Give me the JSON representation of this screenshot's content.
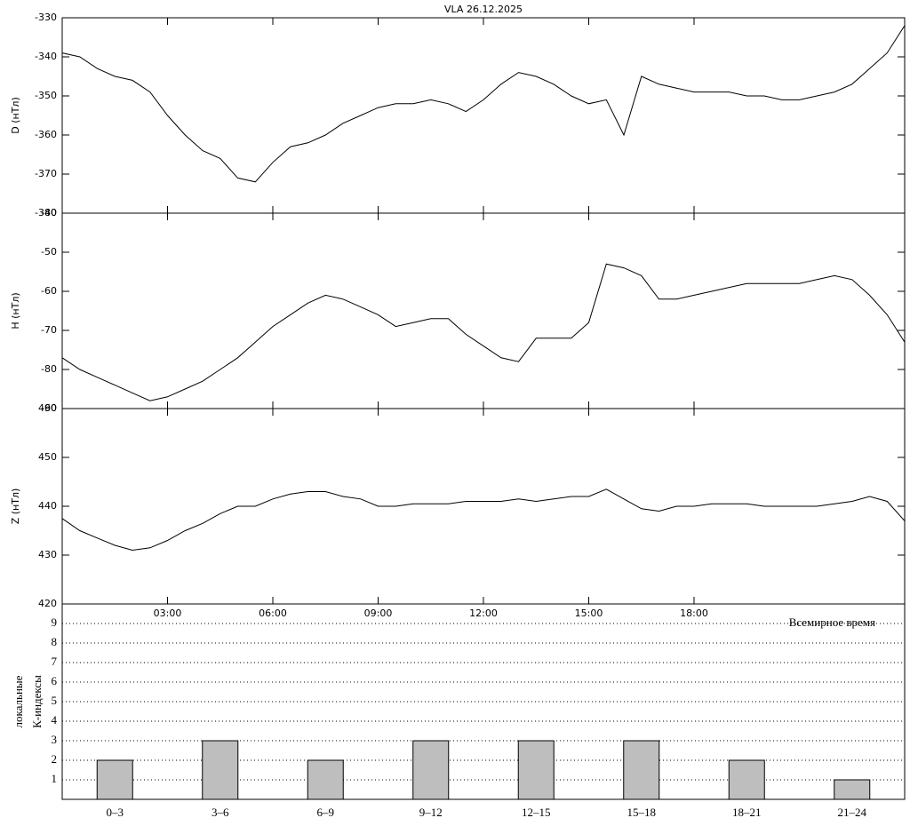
{
  "chart_data": [
    {
      "type": "line",
      "title": "VLA   26.12.2025",
      "ylabel": "D (нТл)",
      "color": "#000000",
      "x": [
        0,
        0.5,
        1,
        1.5,
        2,
        2.5,
        3,
        3.5,
        4,
        4.5,
        5,
        5.5,
        6,
        6.5,
        7,
        7.5,
        8,
        8.5,
        9,
        9.5,
        10,
        10.5,
        11,
        11.5,
        12,
        12.5,
        13,
        13.5,
        14,
        14.5,
        15,
        15.5,
        16,
        16.5,
        17,
        17.5,
        18,
        18.5,
        19,
        19.5,
        20,
        20.5,
        21,
        21.5,
        22,
        22.5,
        23,
        23.5,
        24
      ],
      "values": [
        -339,
        -340,
        -343,
        -345,
        -346,
        -349,
        -355,
        -360,
        -364,
        -366,
        -371,
        -372,
        -367,
        -363,
        -362,
        -360,
        -357,
        -355,
        -353,
        -352,
        -352,
        -351,
        -352,
        -354,
        -351,
        -347,
        -344,
        -345,
        -347,
        -350,
        -352,
        -351,
        -360,
        -345,
        -347,
        -348,
        -349,
        -349,
        -349,
        -350,
        -350,
        -351,
        -351,
        -350,
        -349,
        -347,
        -343,
        -339,
        -332
      ],
      "xlim": [
        0,
        24
      ],
      "ylim": [
        -380,
        -330
      ],
      "yticks": [
        -380,
        -370,
        -360,
        -350,
        -340,
        -330
      ]
    },
    {
      "type": "line",
      "ylabel": "H (нТл)",
      "color": "#000000",
      "x": [
        0,
        0.5,
        1,
        1.5,
        2,
        2.5,
        3,
        3.5,
        4,
        4.5,
        5,
        5.5,
        6,
        6.5,
        7,
        7.5,
        8,
        8.5,
        9,
        9.5,
        10,
        10.5,
        11,
        11.5,
        12,
        12.5,
        13,
        13.5,
        14,
        14.5,
        15,
        15.5,
        16,
        16.5,
        17,
        17.5,
        18,
        18.5,
        19,
        19.5,
        20,
        20.5,
        21,
        21.5,
        22,
        22.5,
        23,
        23.5,
        24
      ],
      "values": [
        -77,
        -80,
        -82,
        -84,
        -86,
        -88,
        -87,
        -85,
        -83,
        -80,
        -77,
        -73,
        -69,
        -66,
        -63,
        -61,
        -62,
        -64,
        -66,
        -69,
        -68,
        -67,
        -67,
        -71,
        -74,
        -77,
        -78,
        -72,
        -72,
        -72,
        -68,
        -53,
        -54,
        -56,
        -62,
        -62,
        -61,
        -60,
        -59,
        -58,
        -58,
        -58,
        -58,
        -57,
        -56,
        -57,
        -61,
        -66,
        -73
      ],
      "xlim": [
        0,
        24
      ],
      "ylim": [
        -90,
        -40
      ],
      "yticks": [
        -90,
        -80,
        -70,
        -60,
        -50,
        -40
      ]
    },
    {
      "type": "line",
      "ylabel": "Z (нТл)",
      "color": "#000000",
      "x": [
        0,
        0.5,
        1,
        1.5,
        2,
        2.5,
        3,
        3.5,
        4,
        4.5,
        5,
        5.5,
        6,
        6.5,
        7,
        7.5,
        8,
        8.5,
        9,
        9.5,
        10,
        10.5,
        11,
        11.5,
        12,
        12.5,
        13,
        13.5,
        14,
        14.5,
        15,
        15.5,
        16,
        16.5,
        17,
        17.5,
        18,
        18.5,
        19,
        19.5,
        20,
        20.5,
        21,
        21.5,
        22,
        22.5,
        23,
        23.5,
        24
      ],
      "values": [
        437.5,
        435,
        433.5,
        432,
        431,
        431.5,
        433,
        435,
        436.5,
        438.5,
        440,
        440,
        441.5,
        442.5,
        443,
        443,
        442,
        441.5,
        440,
        440,
        440.5,
        440.5,
        440.5,
        441,
        441,
        441,
        441.5,
        441,
        441.5,
        442,
        442,
        443.5,
        441.5,
        439.5,
        439,
        440,
        440,
        440.5,
        440.5,
        440.5,
        440,
        440,
        440,
        440,
        440.5,
        441,
        442,
        441,
        437
      ],
      "xlim": [
        0,
        24
      ],
      "ylim": [
        420,
        460
      ],
      "yticks": [
        420,
        430,
        440,
        450,
        460
      ],
      "xticks": [
        {
          "value": 3,
          "label": "03:00"
        },
        {
          "value": 6,
          "label": "06:00"
        },
        {
          "value": 9,
          "label": "09:00"
        },
        {
          "value": 12,
          "label": "12:00"
        },
        {
          "value": 15,
          "label": "15:00"
        },
        {
          "value": 18,
          "label": "18:00"
        }
      ]
    },
    {
      "type": "bar",
      "ylabel": [
        "локальные",
        "К-индексы"
      ],
      "annotation": "Всемирное время",
      "color": "#bebebe",
      "categories": [
        "0–3",
        "3–6",
        "6–9",
        "9–12",
        "12–15",
        "15–18",
        "18–21",
        "21–24"
      ],
      "values": [
        2,
        3,
        2,
        3,
        3,
        3,
        2,
        1
      ],
      "ylim": [
        0,
        10
      ],
      "yticks": [
        1,
        2,
        3,
        4,
        5,
        6,
        7,
        8,
        9
      ],
      "grid": true
    }
  ]
}
